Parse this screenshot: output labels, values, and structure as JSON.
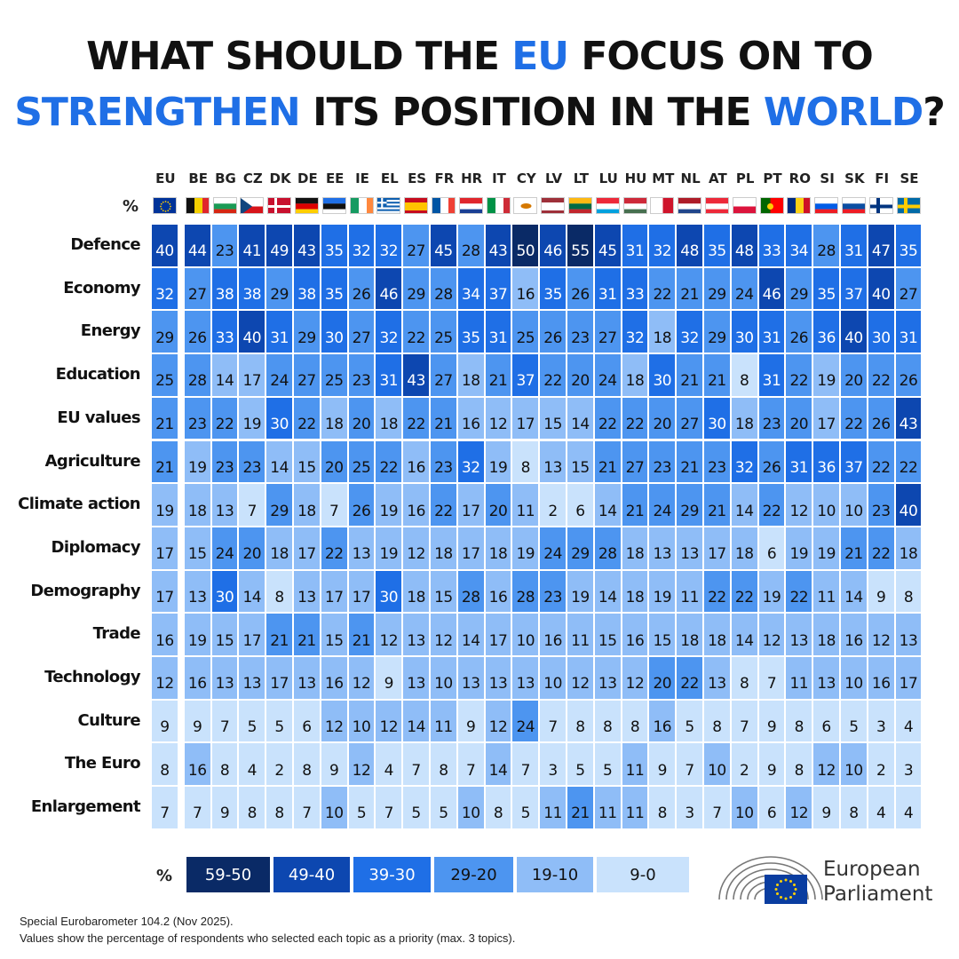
{
  "title": {
    "line1": [
      {
        "text": "WHAT SHOULD THE ",
        "hl": false
      },
      {
        "text": "EU",
        "hl": true
      },
      {
        "text": " FOCUS ON TO",
        "hl": false
      }
    ],
    "line2": [
      {
        "text": "STRENGTHEN",
        "hl": true
      },
      {
        "text": " ITS POSITION IN THE ",
        "hl": false
      },
      {
        "text": "WORLD",
        "hl": true
      },
      {
        "text": "?",
        "hl": false
      }
    ]
  },
  "percent_symbol": "%",
  "colors": {
    "title_highlight": "#1f6fe6",
    "bin_59_50": "#0a2a66",
    "bin_49_40": "#0d47b0",
    "bin_39_30": "#1f6fe6",
    "bin_29_20": "#4d95f0",
    "bin_19_10": "#8fbdf7",
    "bin_9_0": "#c9e2fc"
  },
  "chart_data": {
    "type": "heatmap",
    "title": "WHAT SHOULD THE EU FOCUS ON TO STRENGTHEN ITS POSITION IN THE WORLD?",
    "unit": "%",
    "columns": [
      "EU",
      "BE",
      "BG",
      "CZ",
      "DK",
      "DE",
      "EE",
      "IE",
      "EL",
      "ES",
      "FR",
      "HR",
      "IT",
      "CY",
      "LV",
      "LT",
      "LU",
      "HU",
      "MT",
      "NL",
      "AT",
      "PL",
      "PT",
      "RO",
      "SI",
      "SK",
      "FI",
      "SE"
    ],
    "rows": [
      "Defence",
      "Economy",
      "Energy",
      "Education",
      "EU values",
      "Agriculture",
      "Climate action",
      "Diplomacy",
      "Demography",
      "Trade",
      "Technology",
      "Culture",
      "The Euro",
      "Enlargement"
    ],
    "values": [
      [
        40,
        44,
        23,
        41,
        49,
        43,
        35,
        32,
        32,
        27,
        45,
        28,
        43,
        50,
        46,
        55,
        45,
        31,
        32,
        48,
        35,
        48,
        33,
        34,
        28,
        31,
        47,
        35
      ],
      [
        32,
        27,
        38,
        38,
        29,
        38,
        35,
        26,
        46,
        29,
        28,
        34,
        37,
        16,
        35,
        26,
        31,
        33,
        22,
        21,
        29,
        24,
        46,
        29,
        35,
        37,
        40,
        27
      ],
      [
        29,
        26,
        33,
        40,
        31,
        29,
        30,
        27,
        32,
        22,
        25,
        35,
        31,
        25,
        26,
        23,
        27,
        32,
        18,
        32,
        29,
        30,
        31,
        26,
        36,
        40,
        30,
        31
      ],
      [
        25,
        28,
        14,
        17,
        24,
        27,
        25,
        23,
        31,
        43,
        27,
        18,
        21,
        37,
        22,
        20,
        24,
        18,
        30,
        21,
        21,
        8,
        31,
        22,
        19,
        20,
        22,
        26
      ],
      [
        21,
        23,
        22,
        19,
        30,
        22,
        18,
        20,
        18,
        22,
        21,
        16,
        12,
        17,
        15,
        14,
        22,
        22,
        20,
        27,
        30,
        18,
        23,
        20,
        17,
        22,
        26,
        43
      ],
      [
        21,
        19,
        23,
        23,
        14,
        15,
        20,
        25,
        22,
        16,
        23,
        32,
        19,
        8,
        13,
        15,
        21,
        27,
        23,
        21,
        23,
        32,
        26,
        31,
        36,
        37,
        22,
        22
      ],
      [
        19,
        18,
        13,
        7,
        29,
        18,
        7,
        26,
        19,
        16,
        22,
        17,
        20,
        11,
        2,
        6,
        14,
        21,
        24,
        29,
        21,
        14,
        22,
        12,
        10,
        10,
        23,
        40
      ],
      [
        17,
        15,
        24,
        20,
        18,
        17,
        22,
        13,
        19,
        12,
        18,
        17,
        18,
        19,
        24,
        29,
        28,
        18,
        13,
        13,
        17,
        18,
        6,
        19,
        19,
        21,
        22,
        18
      ],
      [
        17,
        13,
        30,
        14,
        8,
        13,
        17,
        17,
        30,
        18,
        15,
        28,
        16,
        28,
        23,
        19,
        14,
        18,
        19,
        11,
        22,
        22,
        19,
        22,
        11,
        14,
        9,
        8
      ],
      [
        16,
        19,
        15,
        17,
        21,
        21,
        15,
        21,
        12,
        13,
        12,
        14,
        17,
        10,
        16,
        11,
        15,
        16,
        15,
        18,
        18,
        14,
        12,
        13,
        18,
        16,
        12,
        13
      ],
      [
        12,
        16,
        13,
        13,
        17,
        13,
        16,
        12,
        9,
        13,
        10,
        13,
        13,
        13,
        10,
        12,
        13,
        12,
        20,
        22,
        13,
        8,
        7,
        11,
        13,
        10,
        16,
        17
      ],
      [
        9,
        9,
        7,
        5,
        5,
        6,
        12,
        10,
        12,
        14,
        11,
        9,
        12,
        24,
        7,
        8,
        8,
        8,
        16,
        5,
        8,
        7,
        9,
        8,
        6,
        5,
        3,
        4
      ],
      [
        8,
        16,
        8,
        4,
        2,
        8,
        9,
        12,
        4,
        7,
        8,
        7,
        14,
        7,
        3,
        5,
        5,
        11,
        9,
        7,
        10,
        2,
        9,
        8,
        12,
        10,
        2,
        3
      ],
      [
        7,
        7,
        9,
        8,
        8,
        7,
        10,
        5,
        7,
        5,
        5,
        10,
        8,
        5,
        11,
        21,
        11,
        11,
        8,
        3,
        7,
        10,
        6,
        12,
        9,
        8,
        4,
        4
      ]
    ],
    "legend": [
      {
        "label": "59-50",
        "color": "#0a2a66"
      },
      {
        "label": "49-40",
        "color": "#0d47b0"
      },
      {
        "label": "39-30",
        "color": "#1f6fe6"
      },
      {
        "label": "29-20",
        "color": "#4d95f0"
      },
      {
        "label": "19-10",
        "color": "#8fbdf7"
      },
      {
        "label": "9-0",
        "color": "#c9e2fc"
      }
    ]
  },
  "logo": {
    "line1": "European",
    "line2": "Parliament",
    "icon": "european-parliament-hemicycle-icon"
  },
  "footer": {
    "source": "Special Eurobarometer 104.2 (Nov 2025).",
    "note": "Values show the percentage of respondents who selected each topic as a priority (max. 3 topics)."
  }
}
